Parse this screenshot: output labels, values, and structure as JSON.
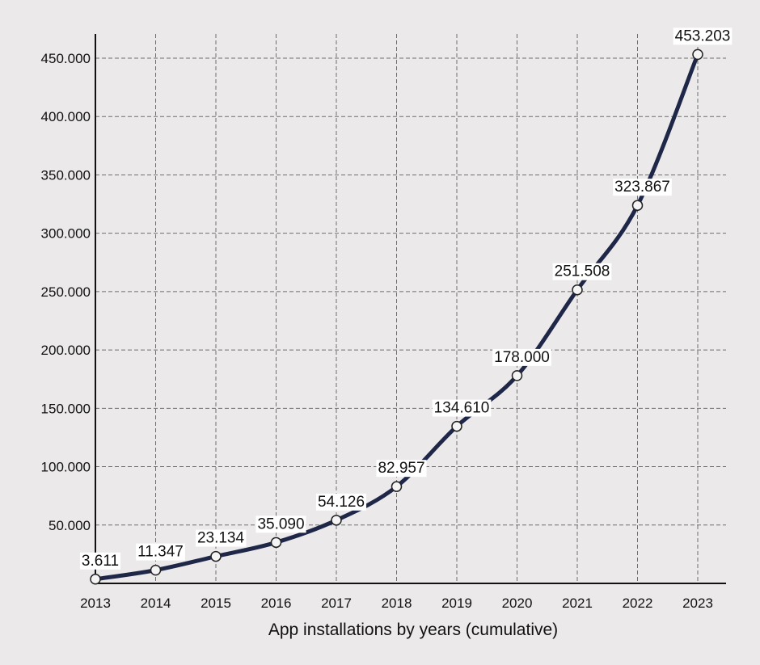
{
  "chart_data": {
    "type": "line",
    "x": [
      "2013",
      "2014",
      "2015",
      "2016",
      "2017",
      "2018",
      "2019",
      "2020",
      "2021",
      "2022",
      "2023"
    ],
    "series": [
      {
        "values": [
          3611,
          11347,
          23134,
          35090,
          54126,
          82957,
          134610,
          178000,
          251508,
          323867,
          453203
        ],
        "labels": [
          "3.611",
          "11.347",
          "23.134",
          "35.090",
          "54.126",
          "82.957",
          "134.610",
          "178.000",
          "251.508",
          "323.867",
          "453.203"
        ],
        "color": "#1e2748"
      }
    ],
    "xlabel": "App installations by years (cumulative)",
    "ylabel": "",
    "ylim": [
      0,
      450000
    ],
    "yticks": [
      50000,
      100000,
      150000,
      200000,
      250000,
      300000,
      350000,
      400000,
      450000
    ],
    "ytick_labels": [
      "50.000",
      "100.000",
      "150.000",
      "200.000",
      "250.000",
      "300.000",
      "350.000",
      "400.000",
      "450.000"
    ],
    "grid": true,
    "background": "#ebe9ea"
  }
}
